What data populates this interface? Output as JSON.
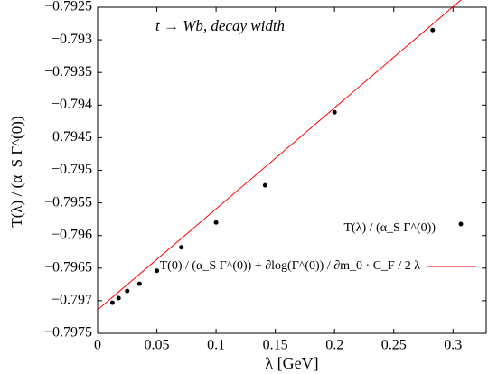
{
  "chart_data": {
    "type": "scatter",
    "annotation": "t → Wb, decay width",
    "x_label": "λ [GeV]",
    "y_label": "T(λ) / (α_S Γ^(0))",
    "xlim": [
      0,
      0.328
    ],
    "ylim": [
      -0.7975,
      -0.7925
    ],
    "xticks": [
      0,
      0.05,
      0.1,
      0.15,
      0.2,
      0.25,
      0.3
    ],
    "yticks": [
      {
        "value": -0.7925,
        "label": "−0.7925"
      },
      {
        "value": -0.793,
        "label": "−0.793"
      },
      {
        "value": -0.7935,
        "label": "−0.7935"
      },
      {
        "value": -0.794,
        "label": "−0.794"
      },
      {
        "value": -0.7945,
        "label": "−0.7945"
      },
      {
        "value": -0.795,
        "label": "−0.795"
      },
      {
        "value": -0.7955,
        "label": "−0.7955"
      },
      {
        "value": -0.796,
        "label": "−0.796"
      },
      {
        "value": -0.7965,
        "label": "−0.7965"
      },
      {
        "value": -0.797,
        "label": "−0.797"
      },
      {
        "value": -0.7975,
        "label": "−0.7975"
      }
    ],
    "series": [
      {
        "name": "T(λ) / (α_S Γ^(0))",
        "color": "#000000",
        "kind": "points",
        "x": [
          0.0125,
          0.0177,
          0.025,
          0.0354,
          0.05,
          0.0707,
          0.1,
          0.1414,
          0.2,
          0.2828
        ],
        "values": [
          -0.79703,
          -0.79696,
          -0.79685,
          -0.79674,
          -0.79654,
          -0.79618,
          -0.7958,
          -0.79523,
          -0.79411,
          -0.79285
        ]
      },
      {
        "name": "T(0) / (α_S Γ^(0)) + ∂log(Γ^(0)) / ∂m_0 · C_F / 2 λ",
        "color": "#ff0000",
        "kind": "line",
        "x": [
          0,
          0.328
        ],
        "values": [
          -0.79714,
          -0.79206
        ]
      }
    ]
  }
}
